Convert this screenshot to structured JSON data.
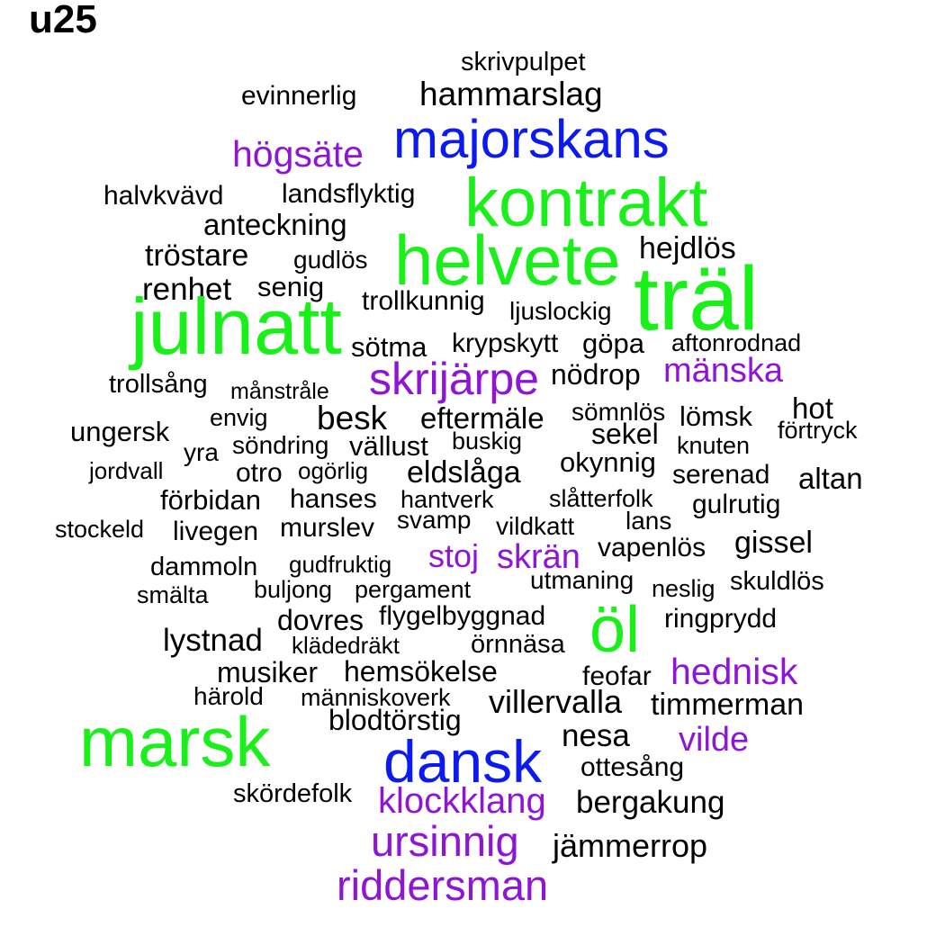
{
  "title": "u25",
  "colors": {
    "black": "#000000",
    "purple": "#8f15d6",
    "blue": "#0a1af0",
    "green": "#19f019"
  },
  "words": [
    "skrivpulpet",
    "evinnerlig",
    "hammarslag",
    "majorskans",
    "högsäte",
    "halvkvävd",
    "landsflyktig",
    "kontrakt",
    "anteckning",
    "hejdlös",
    "tröstare",
    "gudlös",
    "helvete",
    "renhet",
    "senig",
    "trollkunnig",
    "träl",
    "ljuslockig",
    "julnatt",
    "sötma",
    "krypskytt",
    "göpa",
    "aftonrodnad",
    "skrijärpe",
    "mänska",
    "nödrop",
    "trollsång",
    "månstråle",
    "hot",
    "envig",
    "besk",
    "eftermäle",
    "sömnlös",
    "lömsk",
    "ungersk",
    "sekel",
    "förtryck",
    "buskig",
    "knuten",
    "söndring",
    "vällust",
    "yra",
    "jordvall",
    "ogörlig",
    "otro",
    "eldslåga",
    "okynnig",
    "serenad",
    "altan",
    "förbidan",
    "hanses",
    "hantverk",
    "slåtterfolk",
    "gulrutig",
    "svamp",
    "lans",
    "stockeld",
    "livegen",
    "murslev",
    "vildkatt",
    "vapenlös",
    "gissel",
    "stoj",
    "skrän",
    "dammoln",
    "gudfruktig",
    "utmaning",
    "skuldlös",
    "smälta",
    "buljong",
    "pergament",
    "neslig",
    "dovres",
    "flygelbyggnad",
    "öl",
    "ringprydd",
    "lystnad",
    "klädedräkt",
    "örnnäsa",
    "musiker",
    "hemsökelse",
    "feofar",
    "hednisk",
    "härold",
    "människoverk",
    "villervalla",
    "timmerman",
    "marsk",
    "blodtörstig",
    "nesa",
    "vilde",
    "dansk",
    "ottesång",
    "skördefolk",
    "klockklang",
    "bergakung",
    "ursinnig",
    "jämmerrop",
    "riddersman"
  ]
}
